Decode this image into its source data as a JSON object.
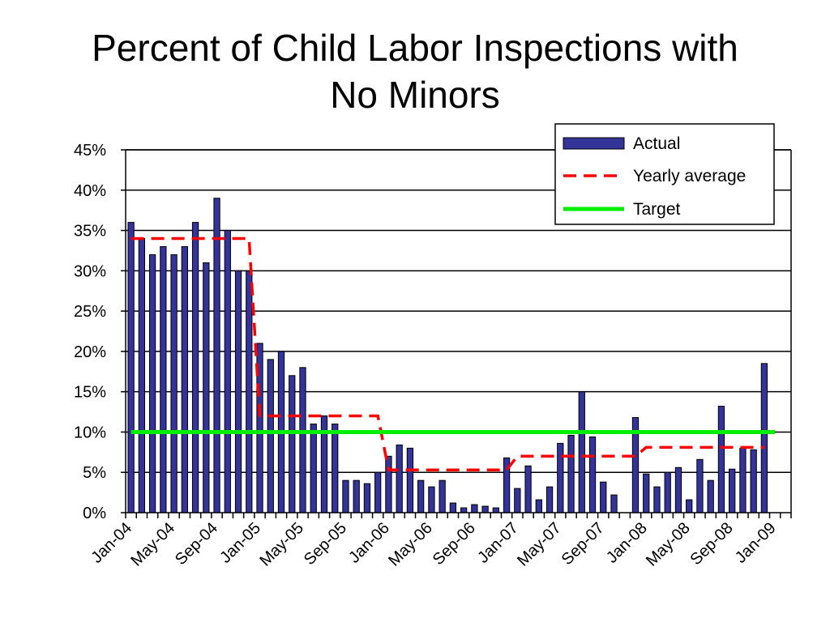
{
  "title_lines": [
    "Percent of Child Labor Inspections with",
    "No Minors"
  ],
  "chart_data": {
    "type": "bar",
    "title": "Percent of Child Labor Inspections with No Minors",
    "xlabel": "",
    "ylabel": "",
    "ylim": [
      0,
      0.45
    ],
    "y_ticks": [
      "0%",
      "5%",
      "10%",
      "15%",
      "20%",
      "25%",
      "30%",
      "35%",
      "40%",
      "45%"
    ],
    "x_tick_labels": [
      "Jan-04",
      "May-04",
      "Sep-04",
      "Jan-05",
      "May-05",
      "Sep-05",
      "Jan-06",
      "May-06",
      "Sep-06",
      "Jan-07",
      "May-07",
      "Sep-07",
      "Jan-08",
      "May-08",
      "Sep-08",
      "Jan-09"
    ],
    "grid": true,
    "legend_position": "top-right",
    "series": [
      {
        "name": "Actual",
        "type": "bar",
        "color": "#333399",
        "start_month": "Jan-04",
        "values": [
          0.36,
          0.34,
          0.32,
          0.33,
          0.32,
          0.33,
          0.36,
          0.31,
          0.39,
          0.35,
          0.3,
          0.3,
          0.21,
          0.19,
          0.2,
          0.17,
          0.18,
          0.11,
          0.12,
          0.11,
          0.04,
          0.04,
          0.036,
          0.05,
          0.07,
          0.084,
          0.08,
          0.04,
          0.032,
          0.04,
          0.012,
          0.006,
          0.01,
          0.008,
          0.006,
          0.068,
          0.03,
          0.058,
          0.016,
          0.032,
          0.086,
          0.096,
          0.15,
          0.094,
          0.038,
          0.022,
          0.0,
          0.118,
          0.048,
          0.032,
          0.05,
          0.056,
          0.016,
          0.066,
          0.04,
          0.132,
          0.054,
          0.08,
          0.078,
          0.185
        ]
      },
      {
        "name": "Yearly average",
        "type": "line",
        "style": "dashed",
        "color": "#ff0000",
        "segments": [
          {
            "from": "Jan-04",
            "to": "Dec-04",
            "value": 0.34
          },
          {
            "from": "Jan-05",
            "to": "Dec-05",
            "value": 0.12
          },
          {
            "from": "Jan-06",
            "to": "Dec-06",
            "value": 0.053
          },
          {
            "from": "Jan-07",
            "to": "Dec-07",
            "value": 0.07
          },
          {
            "from": "Jan-08",
            "to": "Dec-08",
            "value": 0.081
          }
        ]
      },
      {
        "name": "Target",
        "type": "line",
        "style": "solid",
        "color": "#00ee00",
        "value": 0.1,
        "from": "Jan-04",
        "to": "Jan-09"
      }
    ]
  }
}
